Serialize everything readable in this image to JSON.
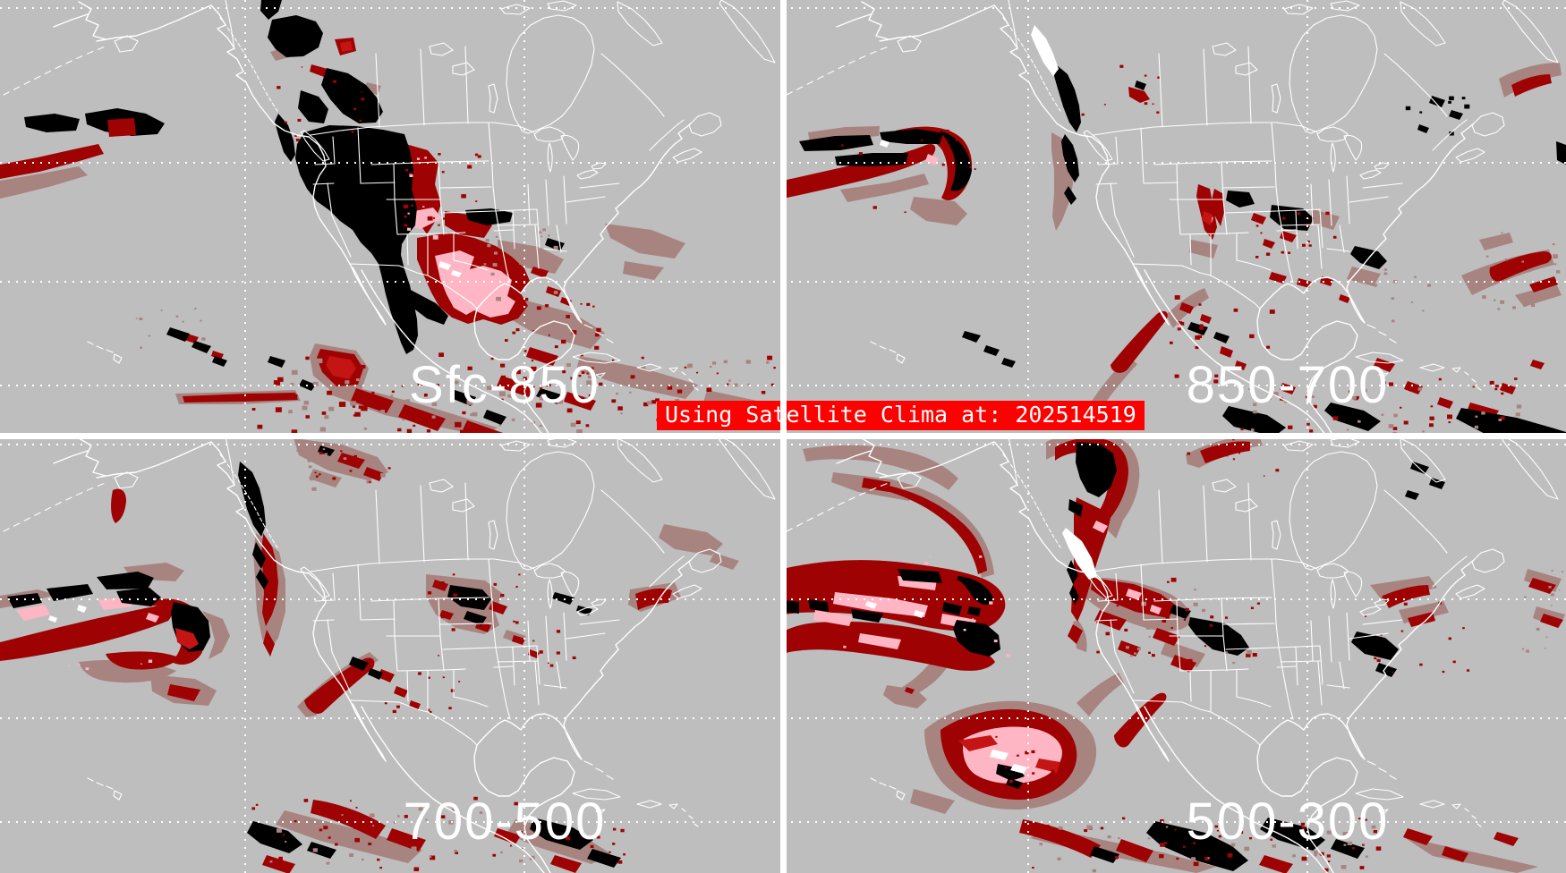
{
  "banner": {
    "text": "Using Satellite Clima at: 202514519",
    "background_color": "#FF0000",
    "text_color": "#FFFFFF"
  },
  "panels": [
    {
      "id": "sfc-850",
      "label": "Sfc-850",
      "position": "top-left",
      "layer": "Surface to 850 mb"
    },
    {
      "id": "850-700",
      "label": "850-700",
      "position": "top-right",
      "layer": "850 mb to 700 mb"
    },
    {
      "id": "700-500",
      "label": "700-500",
      "position": "bottom-left",
      "layer": "700 mb to 500 mb"
    },
    {
      "id": "500-300",
      "label": "500-300",
      "position": "bottom-right",
      "layer": "500 mb to 300 mb"
    }
  ],
  "colors": {
    "background": "#BEBEBE",
    "cloud_black": "#000000",
    "cloud_dark_red": "#9E0202",
    "cloud_bright_red": "#C41414",
    "cloud_rosy": "#A78480",
    "cloud_pink": "#FFB6C4",
    "map_outline": "#FFFFFF",
    "divider": "#FFFFFF"
  },
  "map_region": "North America and East Pacific satellite view with state and province outlines"
}
